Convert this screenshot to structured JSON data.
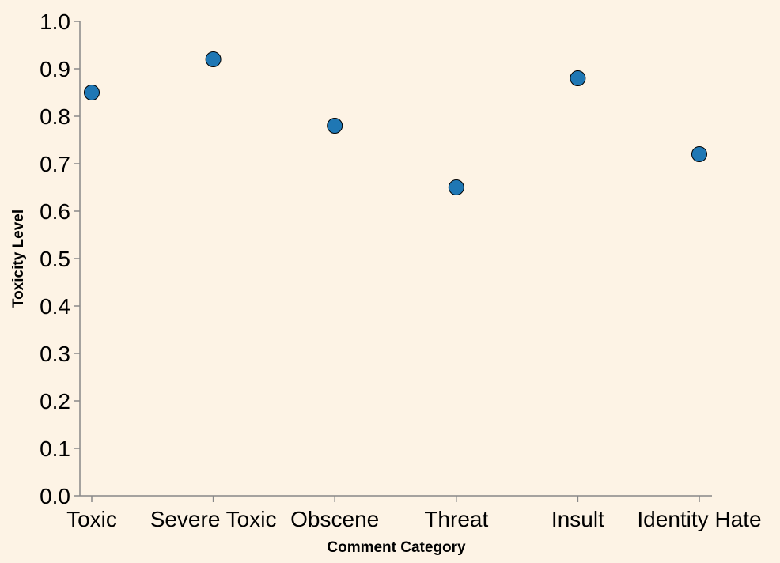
{
  "chart_data": {
    "type": "scatter",
    "title": "",
    "xlabel": "Comment Category",
    "ylabel": "Toxicity Level",
    "categories": [
      "Toxic",
      "Severe Toxic",
      "Obscene",
      "Threat",
      "Insult",
      "Identity Hate"
    ],
    "series": [
      {
        "values": [
          0.85,
          0.92,
          0.78,
          0.65,
          0.88,
          0.72
        ]
      }
    ],
    "ylim": [
      0.0,
      1.0
    ],
    "yticks": [
      "0.0",
      "0.1",
      "0.2",
      "0.3",
      "0.4",
      "0.5",
      "0.6",
      "0.7",
      "0.8",
      "0.9",
      "1.0"
    ],
    "grid": false,
    "legend": "none",
    "colors": {
      "point": "#1f77b4",
      "background": "#fdf3e5",
      "axis": "#888888"
    }
  }
}
